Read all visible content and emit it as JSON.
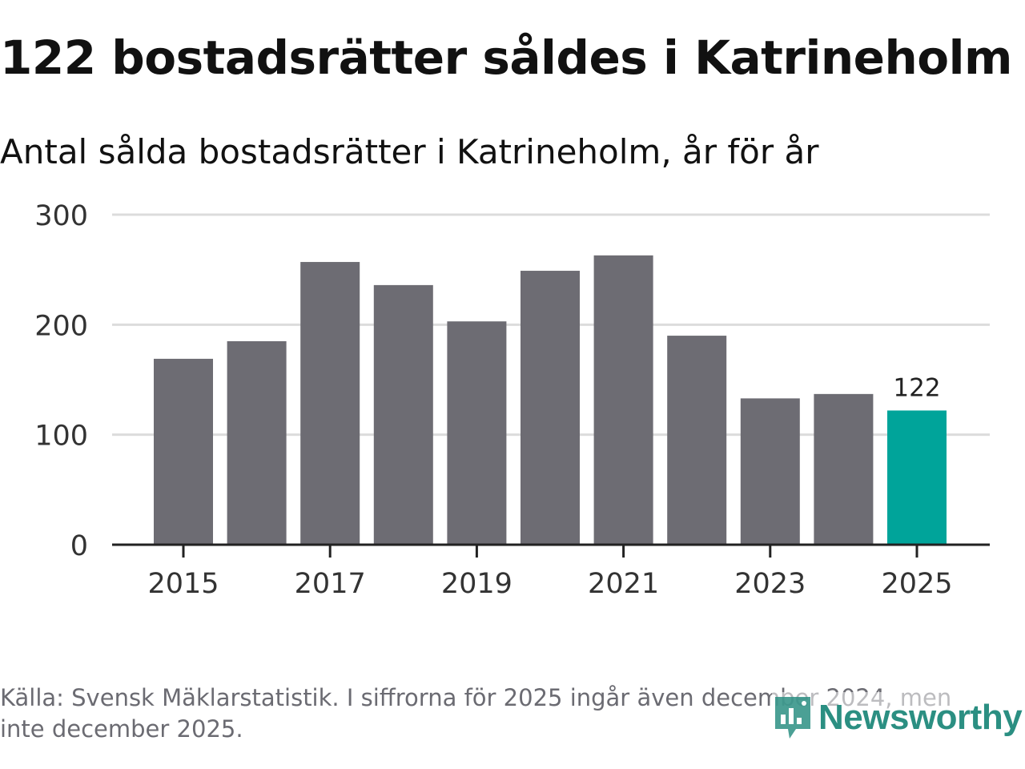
{
  "header": {
    "title": "122 bostadsrätter såldes i Katrineholm",
    "subtitle": "Antal sålda bostadsrätter i Katrineholm, år för år"
  },
  "footer": {
    "source": "Källa: Svensk Mäklarstatistik. I siffrorna för 2025 ingår även december 2024, men inte december 2025.",
    "brand": "Newsworthy"
  },
  "colors": {
    "bar": "#6d6c73",
    "highlight": "#00a49a",
    "grid": "#dcdcdc",
    "axis": "#222222",
    "brand": "#2b8f82"
  },
  "chart_data": {
    "type": "bar",
    "title": "122 bostadsrätter såldes i Katrineholm",
    "subtitle": "Antal sålda bostadsrätter i Katrineholm, år för år",
    "xlabel": "",
    "ylabel": "",
    "categories": [
      "2015",
      "2016",
      "2017",
      "2018",
      "2019",
      "2020",
      "2021",
      "2022",
      "2023",
      "2024",
      "2025"
    ],
    "values": [
      169,
      185,
      257,
      236,
      203,
      249,
      263,
      190,
      133,
      137,
      122
    ],
    "highlight_index": 10,
    "value_label": "122",
    "x_tick_labels": [
      "2015",
      "2017",
      "2019",
      "2021",
      "2023",
      "2025"
    ],
    "y_ticks": [
      0,
      100,
      200,
      300
    ],
    "y_tick_labels": [
      "0",
      "100",
      "200",
      "300"
    ],
    "ylim": [
      0,
      300
    ],
    "grid": true,
    "legend": "none"
  }
}
